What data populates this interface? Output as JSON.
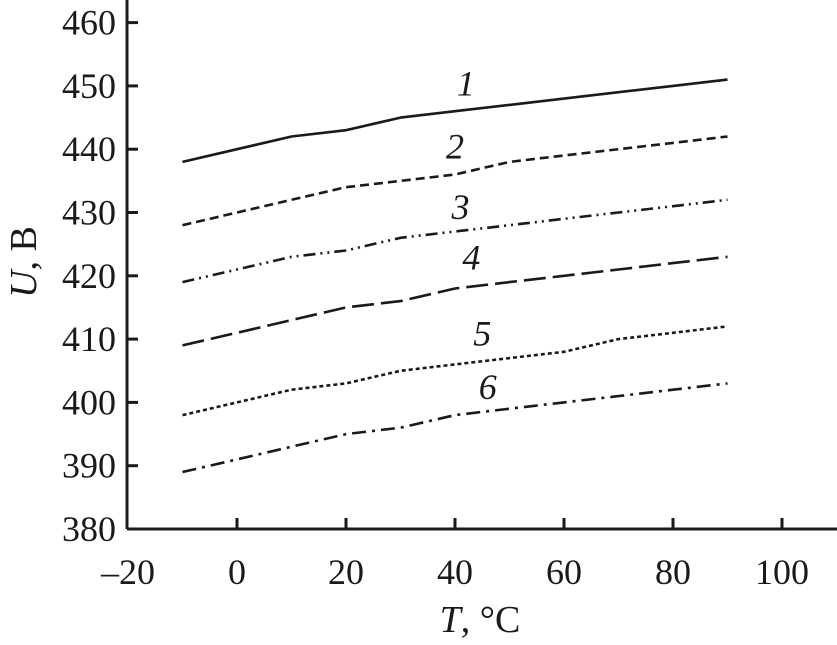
{
  "chart_data": {
    "type": "line",
    "title": "",
    "xlabel": {
      "var": "T",
      "unit": ", °C"
    },
    "ylabel": {
      "var": "U",
      "unit": ", В"
    },
    "xlim": [
      -20,
      110
    ],
    "ylim": [
      380,
      460
    ],
    "x_ticks": [
      -20,
      0,
      20,
      40,
      60,
      80,
      100
    ],
    "x_tick_labels": [
      "–20",
      "0",
      "20",
      "40",
      "60",
      "80",
      "100"
    ],
    "y_ticks": [
      380,
      390,
      400,
      410,
      420,
      430,
      440,
      450,
      460
    ],
    "y_tick_labels": [
      "380",
      "390",
      "400",
      "410",
      "420",
      "430",
      "440",
      "450",
      "460"
    ],
    "grid": false,
    "legend": "none",
    "colors": {
      "line": "#1a1a1a"
    },
    "series": [
      {
        "label": "1",
        "style": "solid",
        "x": [
          -10,
          0,
          10,
          20,
          30,
          40,
          50,
          60,
          70,
          80,
          90
        ],
        "y": [
          438,
          440,
          442,
          443,
          445,
          446,
          447,
          448,
          449,
          450,
          451
        ],
        "label_at": [
          42,
          448.5
        ]
      },
      {
        "label": "2",
        "style": "dashed",
        "x": [
          -10,
          0,
          10,
          20,
          30,
          40,
          50,
          60,
          70,
          80,
          90
        ],
        "y": [
          428,
          430,
          432,
          434,
          435,
          436,
          438,
          439,
          440,
          441,
          442
        ],
        "label_at": [
          40,
          438.5
        ]
      },
      {
        "label": "3",
        "style": "dash-dot-dot",
        "x": [
          -10,
          0,
          10,
          20,
          30,
          40,
          50,
          60,
          70,
          80,
          90
        ],
        "y": [
          419,
          421,
          423,
          424,
          426,
          427,
          428,
          429,
          430,
          431,
          432
        ],
        "label_at": [
          41,
          429
        ]
      },
      {
        "label": "4",
        "style": "long-dash",
        "x": [
          -10,
          0,
          10,
          20,
          30,
          40,
          50,
          60,
          70,
          80,
          90
        ],
        "y": [
          409,
          411,
          413,
          415,
          416,
          418,
          419,
          420,
          421,
          422,
          423
        ],
        "label_at": [
          43,
          421
        ]
      },
      {
        "label": "5",
        "style": "dotted",
        "x": [
          -10,
          0,
          10,
          20,
          30,
          40,
          50,
          60,
          70,
          80,
          90
        ],
        "y": [
          398,
          400,
          402,
          403,
          405,
          406,
          407,
          408,
          410,
          411,
          412
        ],
        "label_at": [
          45,
          409
        ]
      },
      {
        "label": "6",
        "style": "dash-dot",
        "x": [
          -10,
          0,
          10,
          20,
          30,
          40,
          50,
          60,
          70,
          80,
          90
        ],
        "y": [
          389,
          391,
          393,
          395,
          396,
          398,
          399,
          400,
          401,
          402,
          403
        ],
        "label_at": [
          46,
          400.5
        ]
      }
    ]
  }
}
